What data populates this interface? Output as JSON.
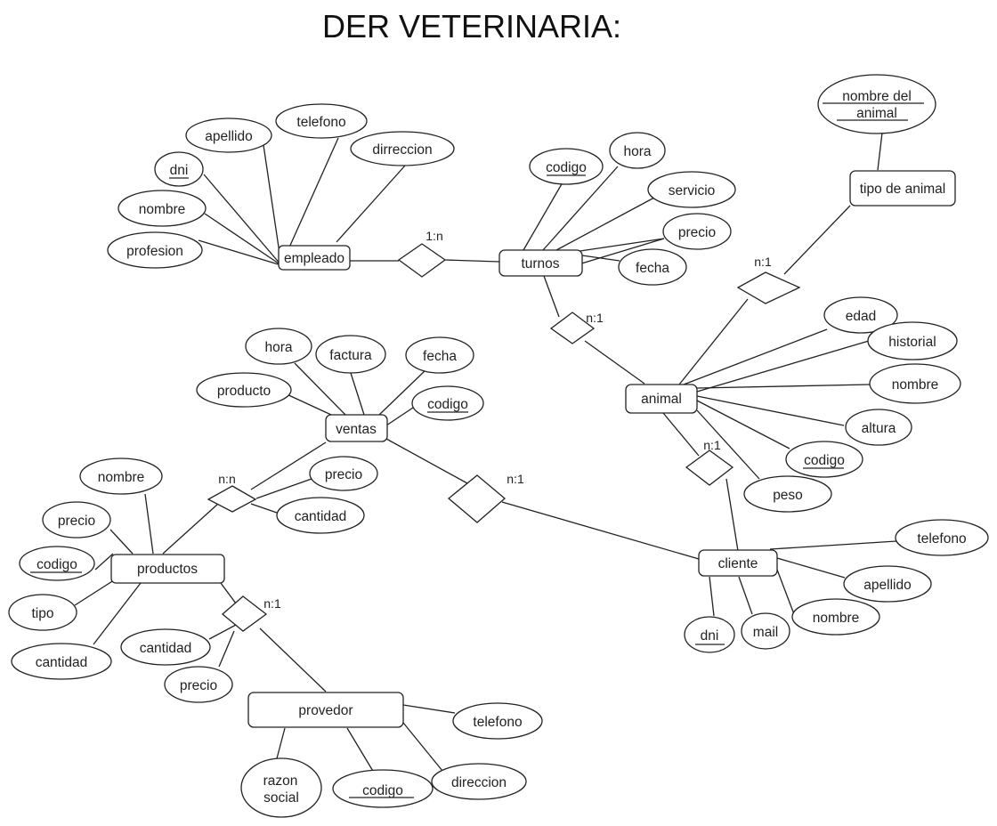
{
  "title": "DER VETERINARIA:",
  "entities": {
    "empleado": "empleado",
    "turnos": "turnos",
    "tipo_animal": "tipo de animal",
    "animal": "animal",
    "ventas": "ventas",
    "productos": "productos",
    "cliente": "cliente",
    "provedor": "provedor"
  },
  "relations": {
    "empleado_turnos": "1:n",
    "turnos_animal": "n:1",
    "animal_tipo": "n:1",
    "animal_cliente": "n:1",
    "ventas_cliente": "n:1",
    "ventas_productos": "n:n",
    "productos_provedor": "n:1"
  },
  "attributes": {
    "empleado": {
      "apellido": "apellido",
      "telefono": "telefono",
      "dni": "dni",
      "dirreccion": "dirreccion",
      "nombre": "nombre",
      "profesion": "profesion"
    },
    "turnos": {
      "codigo": "codigo",
      "hora": "hora",
      "servicio": "servicio",
      "precio": "precio",
      "fecha": "fecha"
    },
    "tipo_animal": {
      "nombre_line1": "nombre del",
      "nombre_line2": "animal"
    },
    "animal": {
      "edad": "edad",
      "historial": "historial",
      "nombre": "nombre",
      "altura": "altura",
      "codigo": "codigo",
      "peso": "peso"
    },
    "ventas": {
      "hora": "hora",
      "factura": "factura",
      "fecha": "fecha",
      "producto": "producto",
      "codigo": "codigo"
    },
    "ventas_productos": {
      "precio": "precio",
      "cantidad": "cantidad"
    },
    "productos": {
      "nombre": "nombre",
      "precio": "precio",
      "codigo": "codigo",
      "tipo": "tipo",
      "cantidad": "cantidad"
    },
    "productos_provedor": {
      "cantidad": "cantidad",
      "precio": "precio"
    },
    "provedor": {
      "telefono": "telefono",
      "razon_line1": "razon",
      "razon_line2": "social",
      "codigo": "codigo",
      "direccion": "direccion"
    },
    "cliente": {
      "telefono": "telefono",
      "apellido": "apellido",
      "nombre": "nombre",
      "dni": "dni",
      "mail": "mail"
    }
  }
}
